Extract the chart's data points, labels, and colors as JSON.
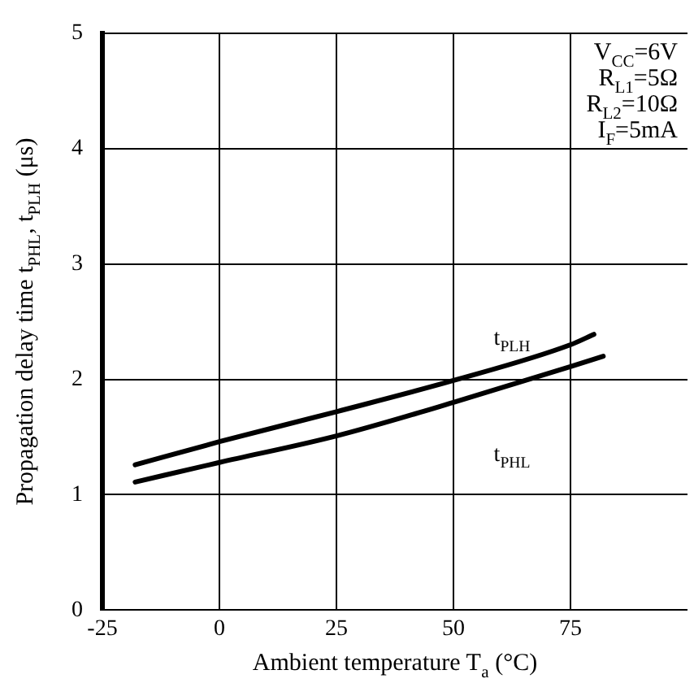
{
  "chart_data": {
    "type": "line",
    "xlabel": "Ambient temperature T$_{a}$ (°C)",
    "ylabel": "Propagation delay time t$_{PHL}$, t$_{PLH}$ (μs)",
    "x": [
      -18,
      0,
      25,
      50,
      75,
      80
    ],
    "xlim": [
      -25,
      100
    ],
    "xticks": [
      -25,
      0,
      25,
      50,
      75
    ],
    "ylim": [
      0,
      5
    ],
    "yticks": [
      0,
      1,
      2,
      3,
      4,
      5
    ],
    "series": [
      {
        "name": "t$_{PLH}$",
        "color": "#000000",
        "values": [
          1.26,
          1.46,
          1.72,
          1.99,
          2.3,
          2.39
        ]
      },
      {
        "name": "t$_{PHL}$",
        "color": "#000000",
        "x": [
          -18,
          0,
          25,
          50,
          75,
          82
        ],
        "values": [
          1.11,
          1.28,
          1.51,
          1.8,
          2.11,
          2.2
        ]
      }
    ],
    "annotations": [
      "V$_{CC}$=6V",
      "R$_{L1}$=5Ω",
      "R$_{L2}$=10Ω",
      "I$_{F}$=5mA"
    ],
    "grid": true,
    "legend": false,
    "marker": "none",
    "line_style": "solid"
  }
}
